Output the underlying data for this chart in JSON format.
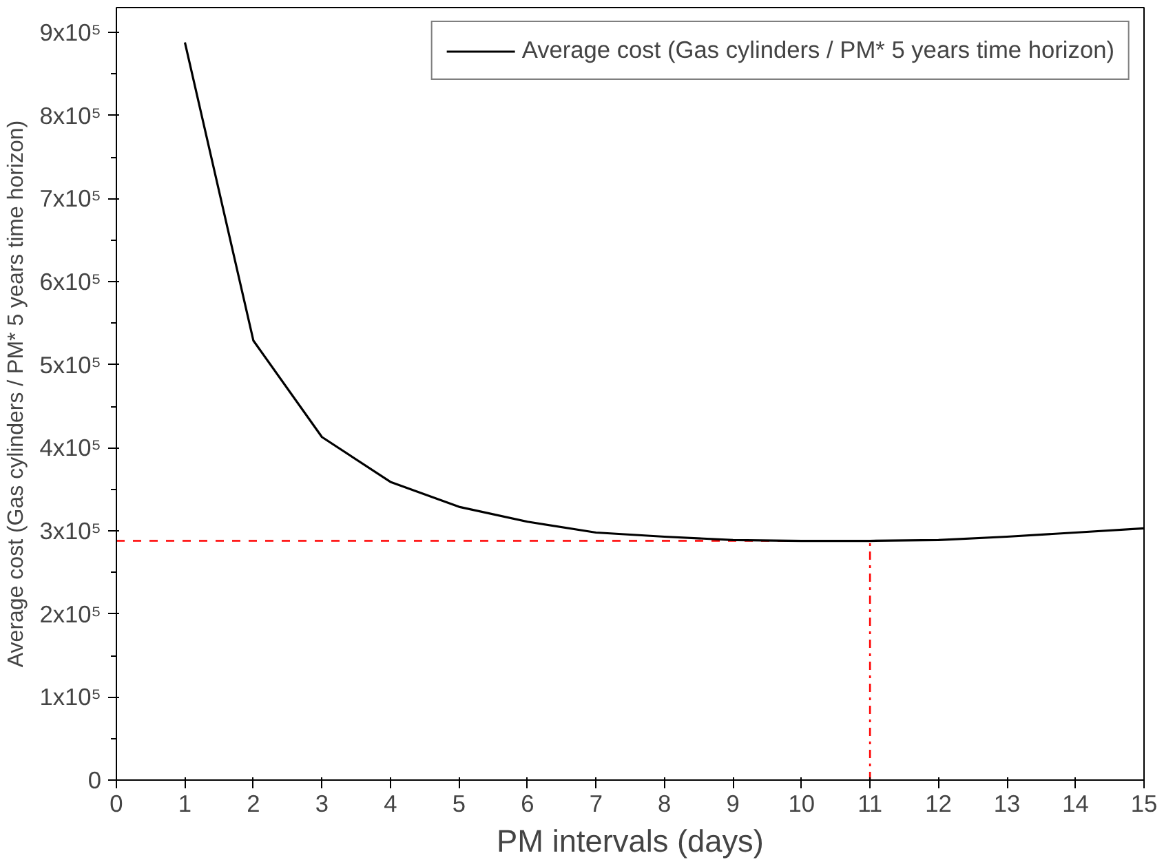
{
  "chart_data": {
    "type": "line",
    "xlabel": "PM intervals (days)",
    "ylabel": "Average cost (Gas cylinders / PM* 5 years time horizon)",
    "x": [
      1,
      2,
      3,
      4,
      5,
      6,
      7,
      8,
      9,
      10,
      11,
      12,
      13,
      14,
      15
    ],
    "series": [
      {
        "name": "Average cost (Gas cylinders / PM* 5 years time horizon)",
        "color": "#000000",
        "values": [
          888000,
          529000,
          413000,
          359000,
          329000,
          311000,
          298000,
          293000,
          289000,
          288000,
          288000,
          289000,
          293000,
          298000,
          303000
        ]
      }
    ],
    "xlim": [
      0,
      15
    ],
    "xticks": [
      0,
      1,
      2,
      3,
      4,
      5,
      6,
      7,
      8,
      9,
      10,
      11,
      12,
      13,
      14,
      15
    ],
    "ylim": [
      0,
      930000
    ],
    "yticks": [
      {
        "value": 0,
        "label": "0"
      },
      {
        "value": 100000,
        "label": "1x10⁵"
      },
      {
        "value": 200000,
        "label": "2x10⁵"
      },
      {
        "value": 300000,
        "label": "3x10⁵"
      },
      {
        "value": 400000,
        "label": "4x10⁵"
      },
      {
        "value": 500000,
        "label": "5x10⁵"
      },
      {
        "value": 600000,
        "label": "6x10⁵"
      },
      {
        "value": 700000,
        "label": "7x10⁵"
      },
      {
        "value": 800000,
        "label": "8x10⁵"
      },
      {
        "value": 900000,
        "label": "9x10⁵"
      }
    ],
    "ref_lines": [
      {
        "axis": "y",
        "value": 288000,
        "color": "#ff0000",
        "line_style": "dashed"
      },
      {
        "axis": "x",
        "value": 11,
        "color": "#ff0000",
        "line_style": "dashdot"
      }
    ],
    "legend": "top right",
    "grid": false,
    "marker": "none",
    "line_style": "solid"
  }
}
